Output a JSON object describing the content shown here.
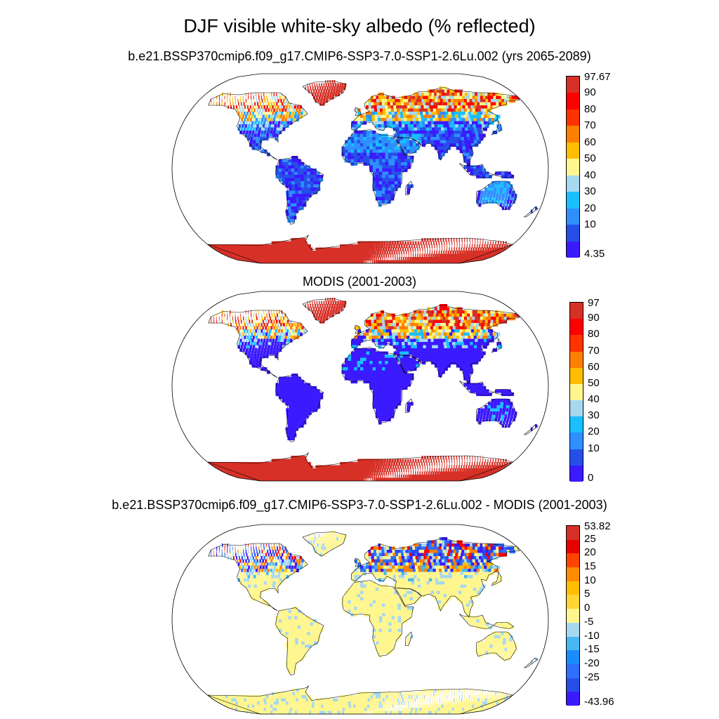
{
  "figure": {
    "title": "DJF visible white-sky albedo (% reflected)"
  },
  "panels": [
    {
      "title": "b.e21.BSSP370cmip6.f09_g17.CMIP6-SSP3-7.0-SSP1-2.6Lu.002 (yrs 2065-2089)",
      "colorbar": {
        "labels": [
          "97.67",
          "90",
          "80",
          "70",
          "60",
          "50",
          "40",
          "30",
          "20",
          "10",
          "4.35"
        ],
        "colors": [
          "#d73027",
          "#ff0000",
          "#ff3300",
          "#ff7f00",
          "#ffbf00",
          "#fff68f",
          "#a6d8f0",
          "#19bfff",
          "#2f8fff",
          "#264fe8",
          "#3b1aff"
        ]
      },
      "palette": {
        "ice": "#d73027",
        "high": "#ff0000",
        "orange": "#ff7f00",
        "gold": "#ffbf00",
        "yellow": "#fff68f",
        "lightblue": "#a6d8f0",
        "cyan": "#19bfff",
        "blue": "#2f8fff",
        "mid": "#264fe8",
        "deep": "#3b1aff"
      }
    },
    {
      "title": "MODIS (2001-2003)",
      "colorbar": {
        "labels": [
          "97",
          "90",
          "80",
          "70",
          "60",
          "50",
          "40",
          "30",
          "20",
          "10",
          "0"
        ],
        "colors": [
          "#d73027",
          "#ff0000",
          "#ff3300",
          "#ff7f00",
          "#ffbf00",
          "#fff68f",
          "#a6d8f0",
          "#19bfff",
          "#2f8fff",
          "#264fe8",
          "#3b1aff"
        ]
      },
      "palette": {
        "ice": "#d73027",
        "high": "#ff0000",
        "orange": "#ff7f00",
        "gold": "#ffbf00",
        "yellow": "#fff68f",
        "lightblue": "#a6d8f0",
        "cyan": "#19bfff",
        "blue": "#3b1aff",
        "mid": "#3b1aff",
        "deep": "#3b1aff"
      }
    },
    {
      "title": "b.e21.BSSP370cmip6.f09_g17.CMIP6-SSP3-7.0-SSP1-2.6Lu.002 - MODIS (2001-2003)",
      "colorbar": {
        "labels": [
          "53.82",
          "25",
          "20",
          "15",
          "10",
          "5",
          "0",
          "-5",
          "-10",
          "-15",
          "-20",
          "-25",
          "-43.96"
        ],
        "colors": [
          "#d73027",
          "#e60000",
          "#ff4400",
          "#ff8c00",
          "#ffbf00",
          "#ffd633",
          "#fff68f",
          "#a6d8f0",
          "#48b8f0",
          "#1a8cff",
          "#2f6fff",
          "#264fe8",
          "#3b1aff"
        ]
      },
      "palette": {
        "ice": "#ffe94d",
        "high": "#ff0000",
        "orange": "#ff7f00",
        "gold": "#fff68f",
        "yellow": "#fff68f",
        "lightblue": "#a6d8f0",
        "cyan": "#a6d8f0",
        "blue": "#fff68f",
        "mid": "#fff68f",
        "deep": "#264fe8"
      }
    }
  ]
}
